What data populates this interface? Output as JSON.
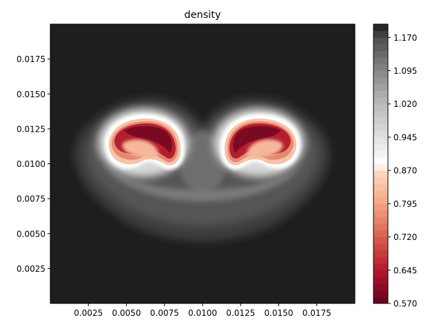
{
  "chart_data": {
    "type": "heatmap",
    "plot_style": "filled-contour",
    "title": "density",
    "xlabel": "",
    "ylabel": "",
    "xlim": [
      0.0,
      0.02
    ],
    "ylim": [
      0.0,
      0.02
    ],
    "x_ticks": [
      0.0025,
      0.005,
      0.0075,
      0.01,
      0.0125,
      0.015,
      0.0175
    ],
    "x_tick_labels": [
      "0.0025",
      "0.0050",
      "0.0075",
      "0.0100",
      "0.0125",
      "0.0150",
      "0.0175"
    ],
    "y_ticks": [
      0.0025,
      0.005,
      0.0075,
      0.01,
      0.0125,
      0.015,
      0.0175
    ],
    "y_tick_labels": [
      "0.0025",
      "0.0050",
      "0.0075",
      "0.0100",
      "0.0125",
      "0.0150",
      "0.0175"
    ],
    "colorbar": {
      "colormap": "RdGy",
      "min": 0.57,
      "max": 1.2,
      "ticks": [
        0.57,
        0.645,
        0.72,
        0.795,
        0.87,
        0.945,
        1.02,
        1.095,
        1.17
      ],
      "tick_labels": [
        "0.570",
        "0.645",
        "0.720",
        "0.795",
        "0.870",
        "0.945",
        "1.020",
        "1.095",
        "1.170"
      ],
      "color_stops": [
        {
          "value": 0.57,
          "color": "#67001f"
        },
        {
          "value": 0.645,
          "color": "#b2182b"
        },
        {
          "value": 0.72,
          "color": "#d6604d"
        },
        {
          "value": 0.795,
          "color": "#f4a582"
        },
        {
          "value": 0.87,
          "color": "#fddbc7"
        },
        {
          "value": 0.885,
          "color": "#ffffff"
        },
        {
          "value": 0.945,
          "color": "#e0e0e0"
        },
        {
          "value": 1.02,
          "color": "#bababa"
        },
        {
          "value": 1.095,
          "color": "#878787"
        },
        {
          "value": 1.17,
          "color": "#4d4d4d"
        },
        {
          "value": 1.2,
          "color": "#1a1a1a"
        }
      ]
    },
    "background_value": 1.2,
    "features": [
      {
        "name": "left-vortex",
        "center": [
          0.0065,
          0.0112
        ],
        "min_value": 0.58
      },
      {
        "name": "right-vortex",
        "center": [
          0.0135,
          0.0112
        ],
        "min_value": 0.58
      },
      {
        "name": "outer-halo",
        "center": [
          0.01,
          0.0095
        ],
        "value": 1.14
      }
    ]
  }
}
